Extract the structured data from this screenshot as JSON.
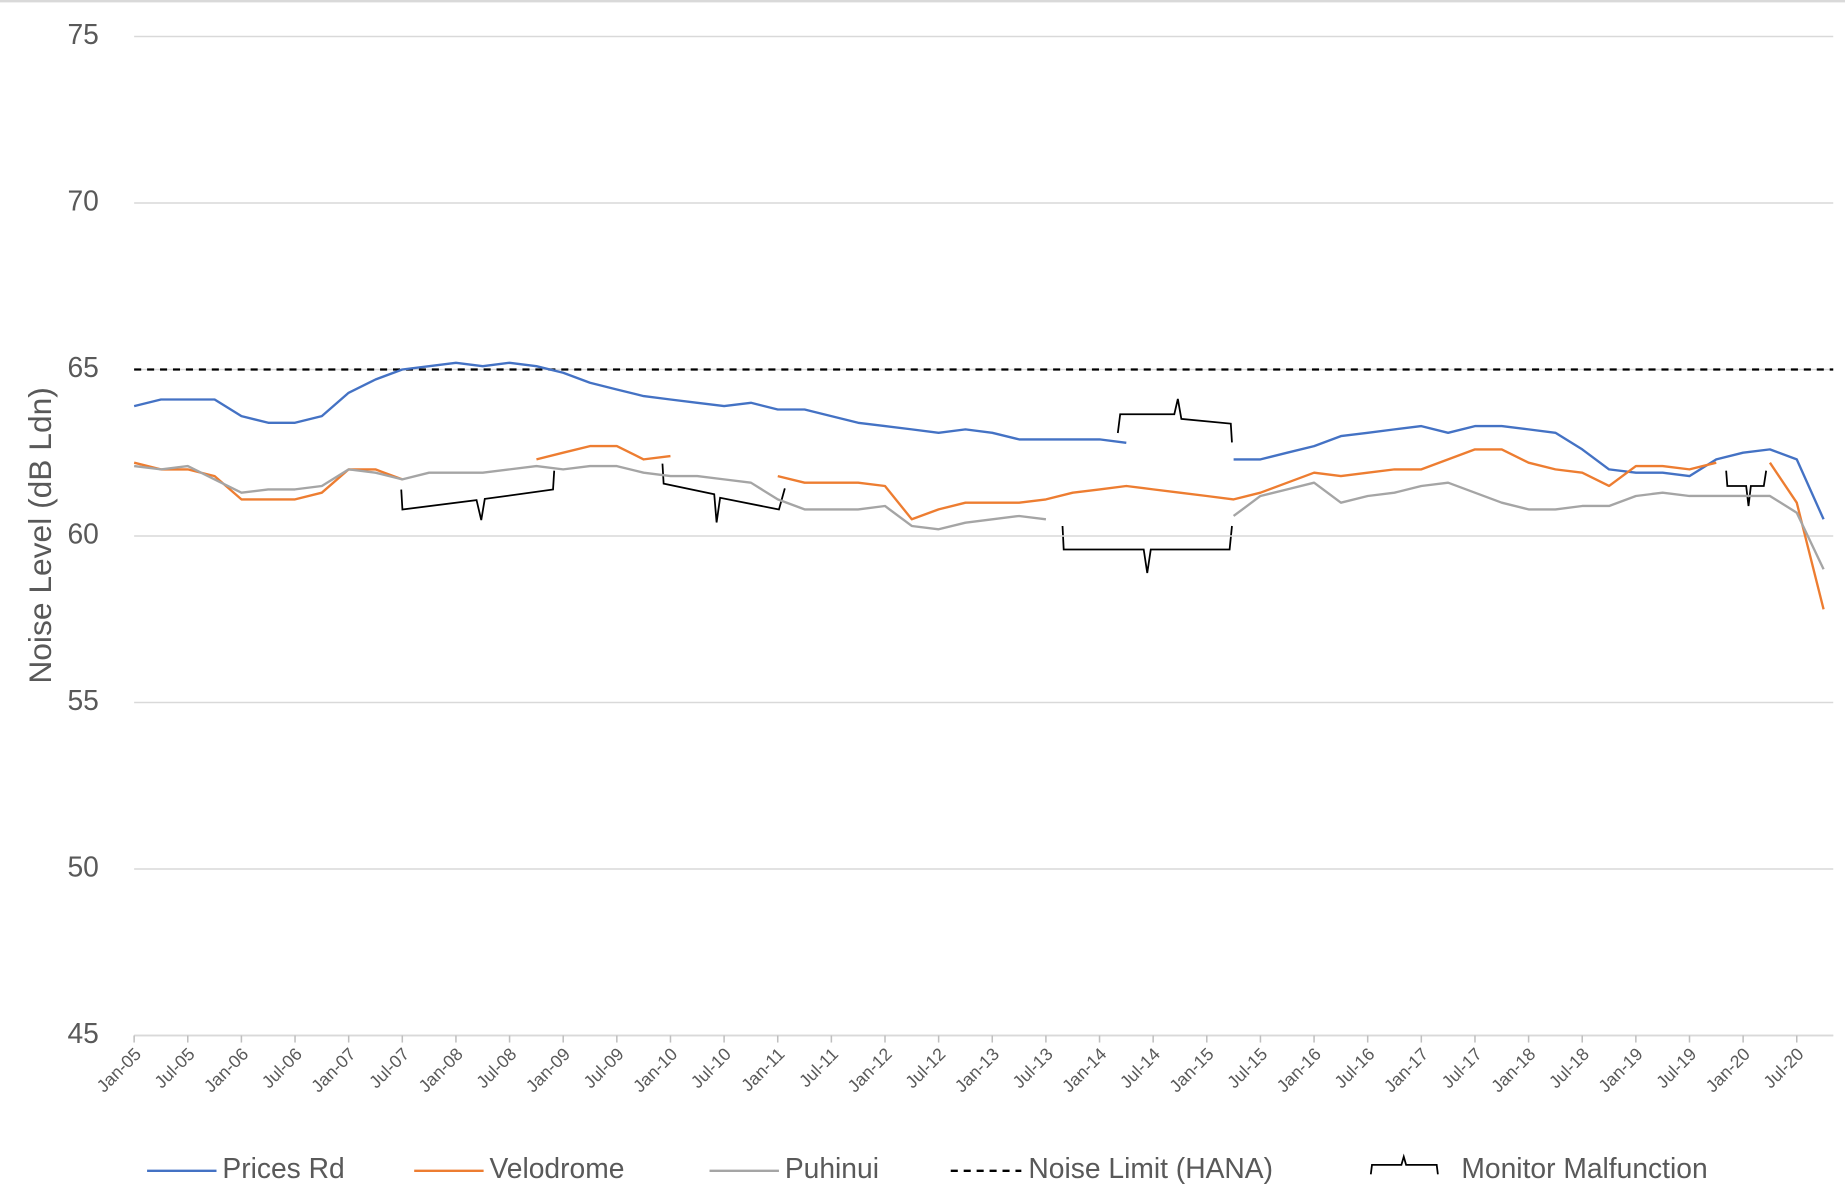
{
  "chart_data": {
    "type": "line",
    "y_label": "Noise Level (dB Ldn)",
    "categories": [
      "Jan-05",
      null,
      "Jul-05",
      null,
      "Jan-06",
      null,
      "Jul-06",
      null,
      "Jan-07",
      null,
      "Jul-07",
      null,
      "Jan-08",
      null,
      "Jul-08",
      null,
      "Jan-09",
      null,
      "Jul-09",
      null,
      "Jan-10",
      null,
      "Jul-10",
      null,
      "Jan-11",
      null,
      "Jul-11",
      null,
      "Jan-12",
      null,
      "Jul-12",
      null,
      "Jan-13",
      null,
      "Jul-13",
      null,
      "Jan-14",
      null,
      "Jul-14",
      null,
      "Jan-15",
      null,
      "Jul-15",
      null,
      "Jan-16",
      null,
      "Jul-16",
      null,
      "Jan-17",
      null,
      "Jul-17",
      null,
      "Jan-18",
      null,
      "Jul-18",
      null,
      "Jan-19",
      null,
      "Jul-19",
      null,
      "Jan-20",
      null,
      "Jul-20",
      null
    ],
    "series": [
      {
        "name": "Prices Rd",
        "color": "#4472c4",
        "values": [
          63.9,
          64.1,
          64.1,
          64.1,
          63.6,
          63.4,
          63.4,
          63.6,
          64.3,
          64.7,
          65.0,
          65.1,
          65.2,
          65.1,
          65.2,
          65.1,
          64.9,
          64.6,
          64.4,
          64.2,
          64.1,
          64.0,
          63.9,
          64.0,
          63.8,
          63.8,
          63.6,
          63.4,
          63.3,
          63.2,
          63.1,
          63.2,
          63.1,
          62.9,
          62.9,
          62.9,
          62.9,
          62.8,
          null,
          null,
          null,
          62.3,
          62.3,
          62.5,
          62.7,
          63.0,
          63.1,
          63.2,
          63.3,
          63.1,
          63.3,
          63.3,
          63.2,
          63.1,
          62.6,
          62.0,
          61.9,
          61.9,
          61.8,
          62.3,
          62.5,
          62.6,
          62.3,
          60.5
        ]
      },
      {
        "name": "Velodrome",
        "color": "#ed7d31",
        "values": [
          62.2,
          62.0,
          62.0,
          61.8,
          61.1,
          61.1,
          61.1,
          61.3,
          62.0,
          62.0,
          61.7,
          null,
          null,
          null,
          null,
          62.3,
          62.5,
          62.7,
          62.7,
          62.3,
          62.4,
          null,
          null,
          null,
          61.8,
          61.6,
          61.6,
          61.6,
          61.5,
          60.5,
          60.8,
          61.0,
          61.0,
          61.0,
          61.1,
          61.3,
          61.4,
          61.5,
          61.4,
          61.3,
          61.2,
          61.1,
          61.3,
          61.6,
          61.9,
          61.8,
          61.9,
          62.0,
          62.0,
          62.3,
          62.6,
          62.6,
          62.2,
          62.0,
          61.9,
          61.5,
          62.1,
          62.1,
          62.0,
          62.2,
          null,
          62.2,
          61.0,
          57.8
        ]
      },
      {
        "name": "Puhinui",
        "color": "#a5a5a5",
        "values": [
          62.1,
          62.0,
          62.1,
          61.7,
          61.3,
          61.4,
          61.4,
          61.5,
          62.0,
          61.9,
          61.7,
          61.9,
          61.9,
          61.9,
          62.0,
          62.1,
          62.0,
          62.1,
          62.1,
          61.9,
          61.8,
          61.8,
          61.7,
          61.6,
          61.1,
          60.8,
          60.8,
          60.8,
          60.9,
          60.3,
          60.2,
          60.4,
          60.5,
          60.6,
          60.5,
          null,
          null,
          null,
          null,
          null,
          null,
          60.6,
          61.2,
          61.4,
          61.6,
          61.0,
          61.2,
          61.3,
          61.5,
          61.6,
          61.3,
          61.0,
          60.8,
          60.8,
          60.9,
          60.9,
          61.2,
          61.3,
          61.2,
          61.2,
          61.2,
          61.2,
          60.7,
          59.0
        ]
      }
    ],
    "hlines": [
      {
        "name": "Noise Limit (HANA)",
        "value": 65,
        "color": "#000000",
        "dash": "6 5"
      }
    ],
    "annotation_legend": "Monitor Malfunction",
    "ylim": [
      45,
      75
    ],
    "yticks": [
      45,
      50,
      55,
      60,
      65,
      70,
      75
    ],
    "grid": true
  }
}
